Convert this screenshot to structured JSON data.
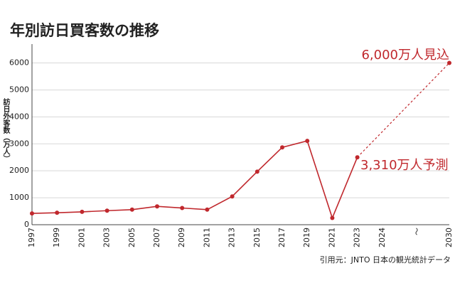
{
  "chart_data": {
    "type": "line",
    "title": "年別訪日買客数の推移",
    "y_label": "訪日外客数（万人）",
    "source": "引用元：JNTO 日本の観光統計データ",
    "categories": [
      "1997",
      "1999",
      "2001",
      "2003",
      "2005",
      "2007",
      "2009",
      "2011",
      "2013",
      "2015",
      "2017",
      "2019",
      "2021",
      "2023",
      "2024",
      "〜",
      "2030"
    ],
    "values": [
      420,
      444,
      477,
      521,
      560,
      680,
      620,
      560,
      1050,
      1970,
      2870,
      3110,
      250,
      2500,
      null,
      null,
      6000
    ],
    "color": "#c0282d",
    "ylim": [
      0,
      6700
    ],
    "yticks": [
      0,
      1000,
      2000,
      3000,
      4000,
      5000,
      6000
    ],
    "grid": true,
    "annotations": [
      "6,000万人見込",
      "3,310万人予測"
    ]
  }
}
